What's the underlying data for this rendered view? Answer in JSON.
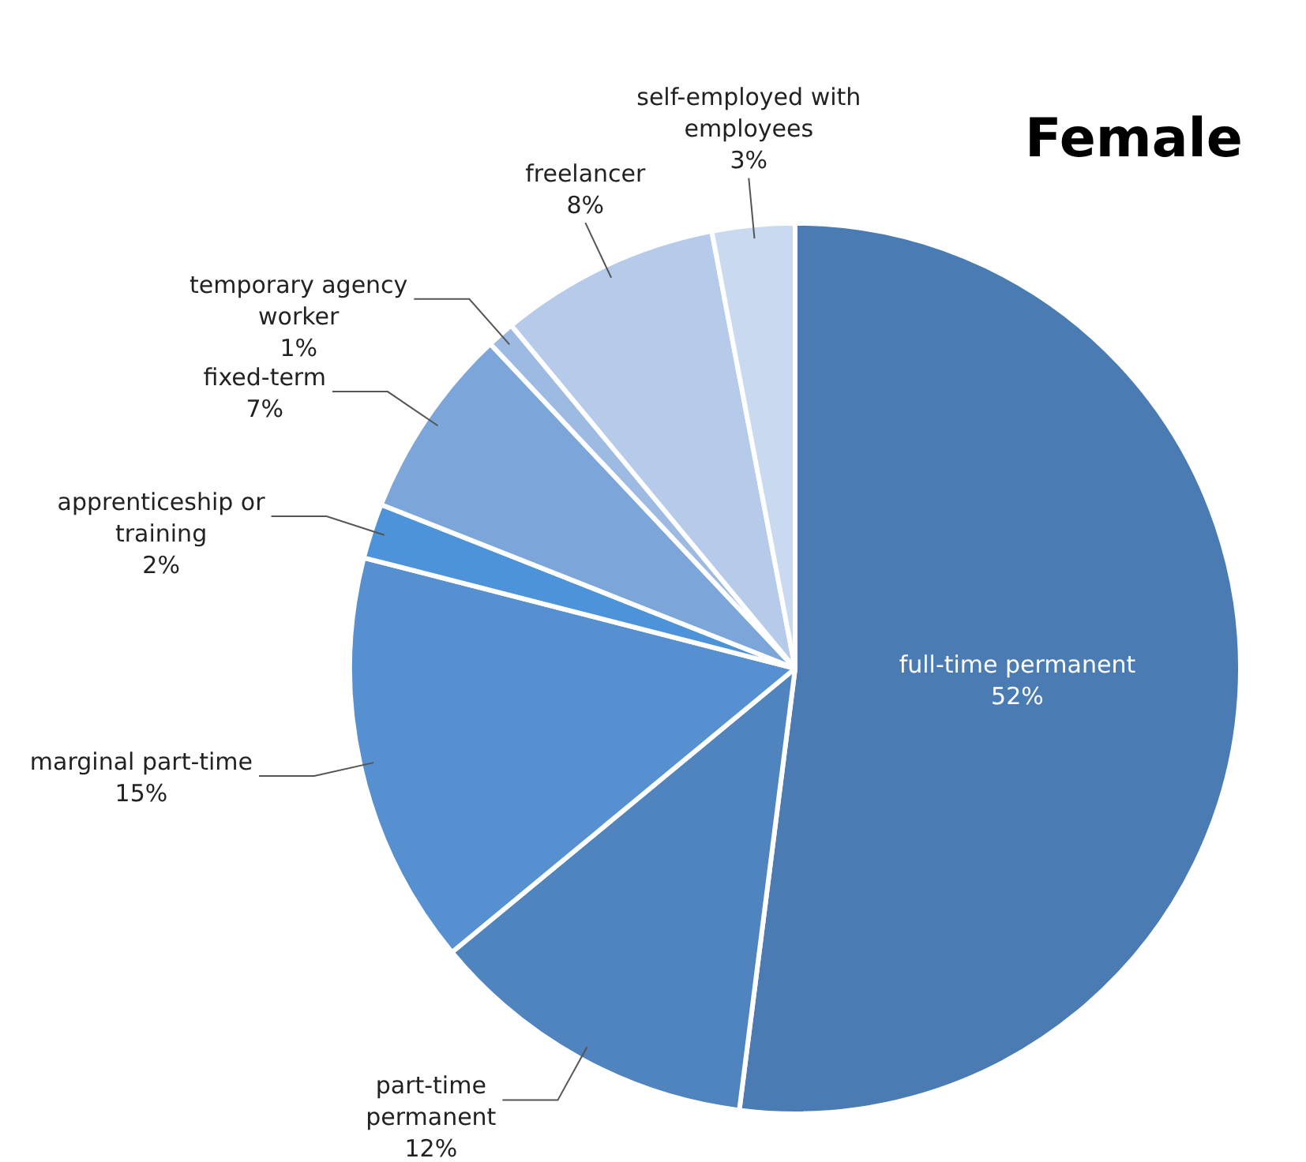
{
  "chart_data": {
    "type": "pie",
    "title": "Female",
    "categories": [
      "full-time permanent",
      "part-time permanent",
      "marginal part-time",
      "apprenticeship or training",
      "fixed-term",
      "temporary agency worker",
      "freelancer",
      "self-employed with employees"
    ],
    "values": [
      52,
      12,
      15,
      2,
      7,
      1,
      8,
      3
    ],
    "value_labels": [
      "52%",
      "12%",
      "15%",
      "2%",
      "7%",
      "1%",
      "8%",
      "3%"
    ],
    "colors": [
      "#4a7bb3",
      "#5084be",
      "#5690d0",
      "#4d93da",
      "#7ca6d9",
      "#9cbae2",
      "#b5cbe9",
      "#c9d9ef"
    ]
  }
}
